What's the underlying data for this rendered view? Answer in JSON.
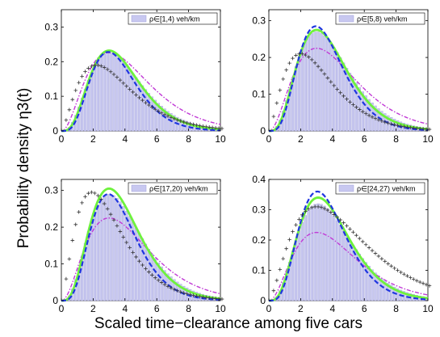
{
  "figure": {
    "ylabel": "Probability density η3(t)",
    "xlabel": "Scaled time−clearance among five cars"
  },
  "chart_data": [
    {
      "type": "bar",
      "legend": "ρ∈[1,4) veh/km",
      "legend_placement": "top-right",
      "xlim": [
        0,
        10
      ],
      "ylim": [
        0,
        0.35
      ],
      "xticks": [
        "0",
        "2",
        "4",
        "6",
        "8",
        "10"
      ],
      "yticks": [
        "0",
        "0.1",
        "0.2",
        "0.3"
      ],
      "histogram_peak": 0.225,
      "histogram_mode": 3.0,
      "green_fit_peak": 0.232,
      "green_fit_mode": 3.0,
      "blue_dashed_peak": 0.228,
      "magenta_dashdot_peak": 0.226,
      "gray_plus_peak": 0.19,
      "gray_plus_mode": 2.2,
      "colors": {
        "bar": "#c8c8f0",
        "green": "#6ef23c",
        "blue": "#1f35e0",
        "magenta": "#c13ad6",
        "gray": "#333333"
      }
    },
    {
      "type": "bar",
      "legend": "ρ∈[5,8) veh/km",
      "legend_placement": "top-right",
      "xlim": [
        0,
        10
      ],
      "ylim": [
        0,
        0.33
      ],
      "xticks": [
        "0",
        "2",
        "4",
        "6",
        "8",
        "10"
      ],
      "yticks": [
        "0",
        "0.1",
        "0.2",
        "0.3"
      ],
      "histogram_peak": 0.27,
      "histogram_mode": 3.0,
      "green_fit_peak": 0.275,
      "blue_dashed_peak": 0.285,
      "magenta_dashdot_peak": 0.225,
      "gray_plus_peak": 0.21,
      "gray_plus_mode": 2.0
    },
    {
      "type": "bar",
      "legend": "ρ∈[17,20) veh/km",
      "legend_placement": "top-right",
      "xlim": [
        0,
        10
      ],
      "ylim": [
        0,
        0.33
      ],
      "xticks": [
        "0",
        "2",
        "4",
        "6",
        "8",
        "10"
      ],
      "yticks": [
        "0",
        "0.1",
        "0.2",
        "0.3"
      ],
      "histogram_peak": 0.29,
      "histogram_mode": 3.0,
      "green_fit_peak": 0.305,
      "blue_dashed_peak": 0.29,
      "magenta_dashdot_peak": 0.225,
      "gray_plus_peak": 0.295,
      "gray_plus_mode": 1.9
    },
    {
      "type": "bar",
      "legend": "ρ∈[24,27) veh/km",
      "legend_placement": "top-right",
      "xlim": [
        0,
        10
      ],
      "ylim": [
        0,
        0.4
      ],
      "xticks": [
        "0",
        "2",
        "4",
        "6",
        "8",
        "10"
      ],
      "yticks": [
        "0",
        "0.1",
        "0.2",
        "0.3",
        "0.4"
      ],
      "histogram_peak": 0.32,
      "histogram_mode": 3.1,
      "green_fit_peak": 0.34,
      "blue_dashed_peak": 0.36,
      "magenta_dashdot_peak": 0.225,
      "gray_plus_peak": 0.31,
      "gray_plus_mode": 3.0
    }
  ]
}
